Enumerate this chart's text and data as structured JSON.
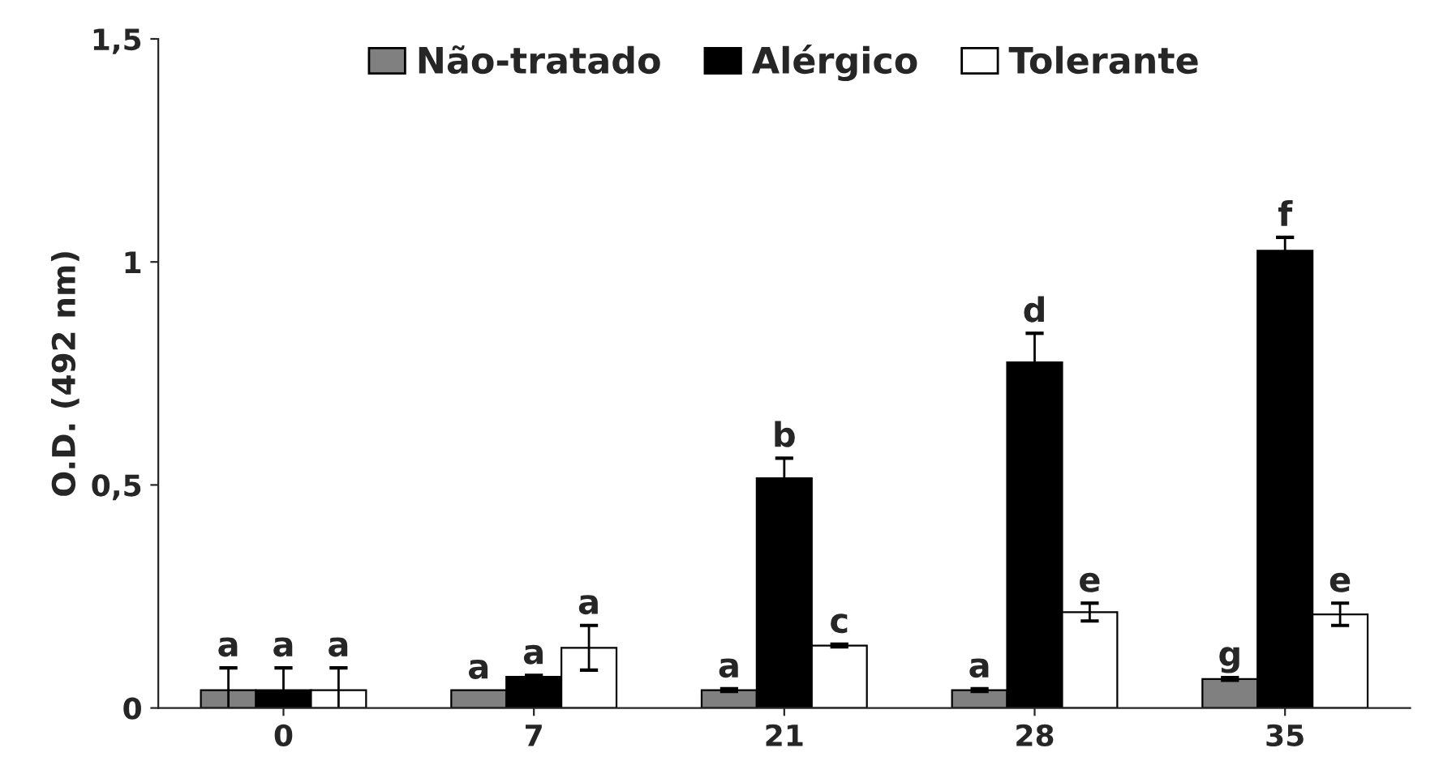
{
  "chart_data": {
    "type": "bar",
    "ylabel": "O.D. (492 nm)",
    "categories": [
      "0",
      "7",
      "21",
      "28",
      "35"
    ],
    "series": [
      {
        "name": "Não-tratado",
        "color": "#808080",
        "values": [
          0.04,
          0.04,
          0.04,
          0.04,
          0.065
        ],
        "errors": [
          0.05,
          null,
          0.003,
          0.003,
          0.003
        ],
        "value_labels": [
          "a",
          "a",
          "a",
          "a",
          "g"
        ]
      },
      {
        "name": "Alérgico",
        "color": "#000000",
        "values": [
          0.04,
          0.07,
          0.515,
          0.775,
          1.025
        ],
        "errors": [
          0.05,
          0.003,
          0.045,
          0.065,
          0.03
        ],
        "value_labels": [
          "a",
          "a",
          "b",
          "d",
          "f"
        ]
      },
      {
        "name": "Tolerante",
        "color": "#ffffff",
        "values": [
          0.04,
          0.135,
          0.14,
          0.215,
          0.21
        ],
        "errors": [
          0.05,
          0.05,
          0.003,
          0.02,
          0.025
        ],
        "value_labels": [
          "a",
          "a",
          "c",
          "e",
          "e"
        ]
      }
    ],
    "ylim": [
      0,
      1.5
    ],
    "yticks": [
      {
        "value": 0,
        "label": "0"
      },
      {
        "value": 0.5,
        "label": "0,5"
      },
      {
        "value": 1,
        "label": "1"
      },
      {
        "value": 1.5,
        "label": "1,5"
      }
    ],
    "grid": false,
    "legend": "top"
  }
}
